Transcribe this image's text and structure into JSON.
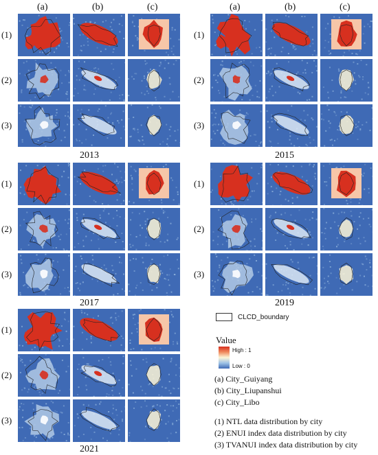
{
  "columns": [
    "(a)",
    "(b)",
    "(c)"
  ],
  "rows": [
    "(1)",
    "(2)",
    "(3)"
  ],
  "years": [
    "2013",
    "2015",
    "2017",
    "2019",
    "2021"
  ],
  "legend": {
    "boundary_label": "CLCD_boundary",
    "value_title": "Value",
    "high_label": "High : 1",
    "low_label": "Low : 0"
  },
  "cities": [
    "(a) City_Guiyang",
    "(b) City_Liupanshui",
    "(c) City_Libo"
  ],
  "data_types": [
    "(1) NTL data distribution by city",
    "(2) ENUI index data distribution by city",
    "(3) TVANUI index data distribution by city"
  ],
  "colors": {
    "low": "#3f6ab5",
    "mid": "#fdf5d6",
    "high": "#d7301f"
  }
}
